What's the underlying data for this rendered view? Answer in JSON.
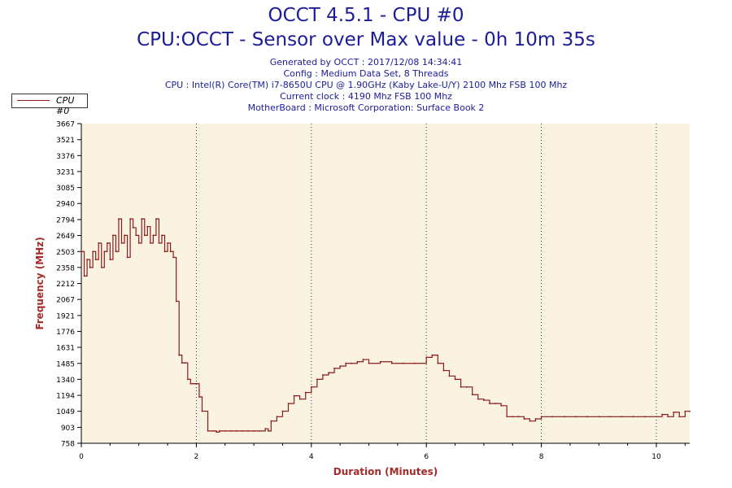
{
  "header": {
    "title": "OCCT 4.5.1 - CPU #0",
    "subtitle": "CPU:OCCT - Sensor over Max value - 0h 10m 35s",
    "info": [
      "Generated by OCCT : 2017/12/08 14:34:41",
      "Config : Medium Data Set, 8 Threads",
      "CPU : Intel(R) Core(TM) i7-8650U CPU @ 1.90GHz (Kaby Lake-U/Y) 2100 Mhz FSB 100 Mhz",
      "Current clock : 4190 Mhz FSB 100 Mhz",
      "MotherBoard : Microsoft Corporation: Surface Book 2"
    ]
  },
  "colors": {
    "plot_bg": "#fbf3e1",
    "series": "#8b1a1a",
    "axis_label": "#a52a2a",
    "grid": "#333333"
  },
  "chart_data": {
    "type": "line",
    "title": "OCCT 4.5.1 - CPU #0",
    "subtitle": "CPU:OCCT - Sensor over Max value - 0h 10m 35s",
    "xlabel": "Duration (Minutes)",
    "ylabel": "Frequency (MHz)",
    "xlim": [
      0,
      10.58
    ],
    "ylim": [
      758,
      3667
    ],
    "xticks": [
      0,
      2,
      4,
      6,
      8,
      10
    ],
    "yticks": [
      758,
      903,
      1049,
      1194,
      1340,
      1485,
      1631,
      1776,
      1921,
      2067,
      2212,
      2358,
      2503,
      2649,
      2794,
      2940,
      3085,
      3231,
      3376,
      3521,
      3667
    ],
    "grid": "vertical dotted lines at x ticks",
    "legend": "top-left",
    "series": [
      {
        "name": "CPU #0",
        "color": "#8b1a1a",
        "x": [
          0,
          0.05,
          0.1,
          0.15,
          0.2,
          0.25,
          0.3,
          0.35,
          0.4,
          0.45,
          0.5,
          0.55,
          0.6,
          0.65,
          0.7,
          0.75,
          0.8,
          0.85,
          0.9,
          0.95,
          1.0,
          1.05,
          1.1,
          1.15,
          1.2,
          1.25,
          1.3,
          1.35,
          1.4,
          1.45,
          1.5,
          1.55,
          1.6,
          1.65,
          1.7,
          1.75,
          1.8,
          1.85,
          1.9,
          1.95,
          2.0,
          2.05,
          2.1,
          2.2,
          2.3,
          2.35,
          2.4,
          2.5,
          2.6,
          2.7,
          2.8,
          2.9,
          3.0,
          3.1,
          3.2,
          3.25,
          3.3,
          3.4,
          3.5,
          3.6,
          3.7,
          3.8,
          3.9,
          4.0,
          4.1,
          4.2,
          4.3,
          4.4,
          4.5,
          4.6,
          4.7,
          4.8,
          4.9,
          5.0,
          5.2,
          5.4,
          5.6,
          5.8,
          6.0,
          6.1,
          6.2,
          6.3,
          6.4,
          6.5,
          6.6,
          6.7,
          6.8,
          6.9,
          7.0,
          7.1,
          7.2,
          7.3,
          7.4,
          7.5,
          7.6,
          7.7,
          7.8,
          7.9,
          8.0,
          8.2,
          8.4,
          8.6,
          8.8,
          9.0,
          9.2,
          9.4,
          9.6,
          9.8,
          10.0,
          10.1,
          10.2,
          10.3,
          10.4,
          10.5,
          10.58
        ],
        "values": [
          2503,
          2280,
          2430,
          2358,
          2503,
          2430,
          2580,
          2358,
          2503,
          2580,
          2430,
          2650,
          2503,
          2800,
          2580,
          2650,
          2450,
          2800,
          2720,
          2650,
          2580,
          2800,
          2650,
          2730,
          2580,
          2650,
          2800,
          2580,
          2650,
          2503,
          2580,
          2503,
          2450,
          2050,
          1560,
          1490,
          1490,
          1340,
          1300,
          1300,
          1300,
          1180,
          1050,
          870,
          870,
          860,
          870,
          870,
          870,
          870,
          870,
          870,
          870,
          870,
          890,
          870,
          960,
          1000,
          1050,
          1120,
          1190,
          1160,
          1220,
          1270,
          1340,
          1380,
          1400,
          1440,
          1460,
          1485,
          1485,
          1500,
          1520,
          1485,
          1500,
          1485,
          1485,
          1485,
          1540,
          1560,
          1485,
          1420,
          1370,
          1340,
          1270,
          1270,
          1200,
          1160,
          1150,
          1120,
          1120,
          1100,
          1000,
          1000,
          1000,
          980,
          960,
          980,
          1000,
          1000,
          1000,
          1000,
          1000,
          1000,
          1000,
          1000,
          1000,
          1000,
          1000,
          1020,
          1000,
          1040,
          1000,
          1049,
          1049
        ]
      }
    ]
  }
}
